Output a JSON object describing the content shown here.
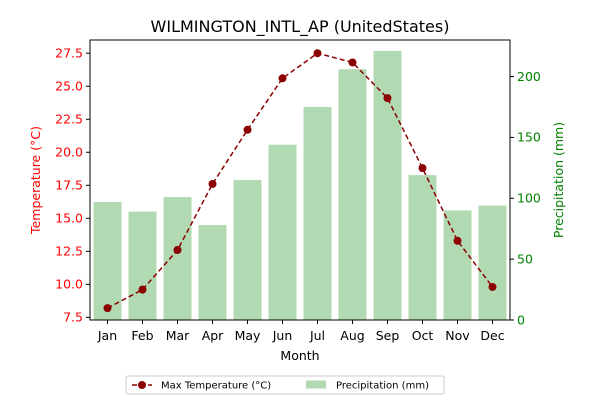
{
  "chart_data": {
    "type": "bar",
    "title": "WILMINGTON_INTL_AP (UnitedStates)",
    "xlabel": "Month",
    "ylabel_left": "Temperature (°C)",
    "ylabel_right": "Precipitation (mm)",
    "categories": [
      "Jan",
      "Feb",
      "Mar",
      "Apr",
      "May",
      "Jun",
      "Jul",
      "Aug",
      "Sep",
      "Oct",
      "Nov",
      "Dec"
    ],
    "ylim_left": [
      7.3,
      28.5
    ],
    "yticks_left": [
      "7.5",
      "10.0",
      "12.5",
      "15.0",
      "17.5",
      "20.0",
      "22.5",
      "25.0",
      "27.5"
    ],
    "ylim_right": [
      0,
      230
    ],
    "yticks_right": [
      "0",
      "50",
      "100",
      "150",
      "200"
    ],
    "series": [
      {
        "name": "Max Temperature (°C)",
        "type": "line",
        "axis": "left",
        "color": "#8b0000",
        "values": [
          8.2,
          9.6,
          12.6,
          17.6,
          21.7,
          25.6,
          27.5,
          26.8,
          24.1,
          18.8,
          13.3,
          9.8
        ]
      },
      {
        "name": "Precipitation (mm)",
        "type": "bar",
        "axis": "right",
        "color": "#b2dab2",
        "values": [
          97,
          89,
          101,
          78,
          115,
          144,
          175,
          206,
          221,
          119,
          90,
          94
        ]
      }
    ],
    "left_axis_color": "#ff0000",
    "right_axis_color": "#008000",
    "grid": false,
    "legend_position": "bottom-center"
  }
}
